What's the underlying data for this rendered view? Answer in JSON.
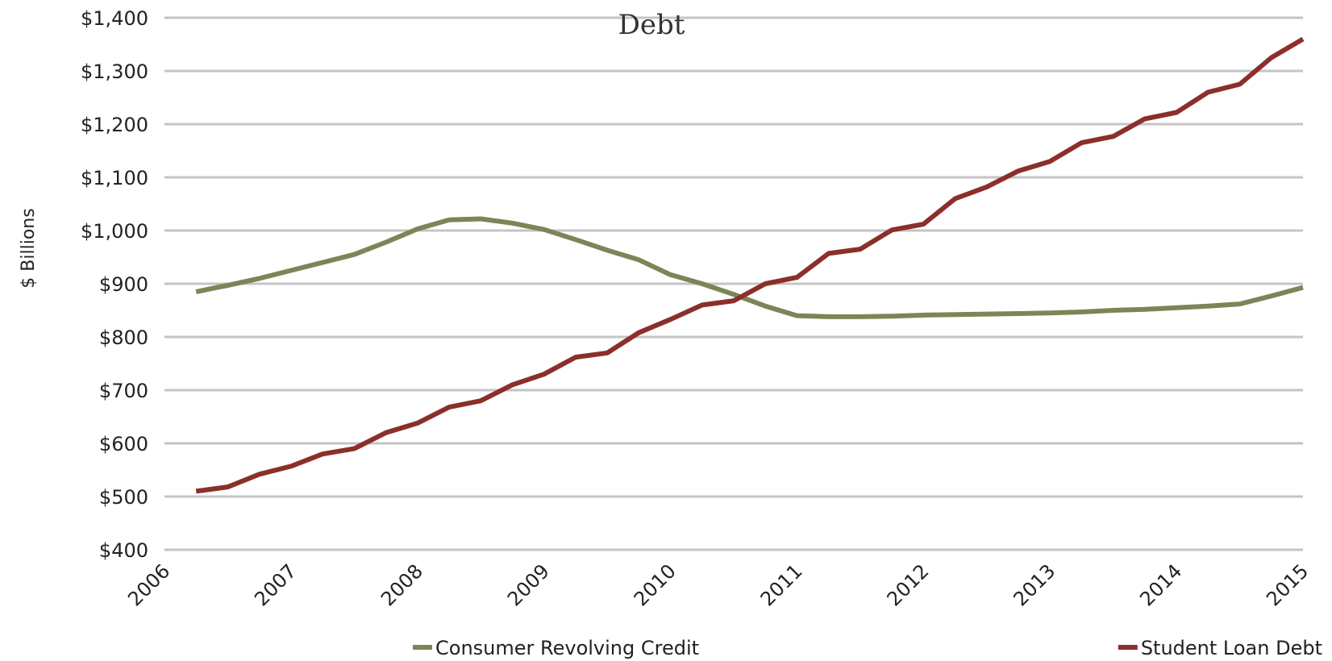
{
  "chart_data": {
    "type": "line",
    "title": "Debt",
    "ylabel": "$ Billions",
    "xlabel": "",
    "x_ticks": [
      "2006",
      "2007",
      "2008",
      "2009",
      "2010",
      "2011",
      "2012",
      "2013",
      "2014",
      "2015"
    ],
    "y_ticks": [
      "$400",
      "$500",
      "$600",
      "$700",
      "$800",
      "$900",
      "$1,000",
      "$1,100",
      "$1,200",
      "$1,300",
      "$1,400"
    ],
    "xlim": [
      2006,
      2015
    ],
    "ylim": [
      400,
      1400
    ],
    "grid": true,
    "legend": "bottom",
    "x": [
      2006.25,
      2006.5,
      2006.75,
      2007.0,
      2007.25,
      2007.5,
      2007.75,
      2008.0,
      2008.25,
      2008.5,
      2008.75,
      2009.0,
      2009.25,
      2009.5,
      2009.75,
      2010.0,
      2010.25,
      2010.5,
      2010.75,
      2011.0,
      2011.25,
      2011.5,
      2011.75,
      2012.0,
      2012.25,
      2012.5,
      2012.75,
      2013.0,
      2013.25,
      2013.5,
      2013.75,
      2014.0,
      2014.25,
      2014.5,
      2014.75,
      2015.0
    ],
    "series": [
      {
        "name": "Consumer Revolving Credit",
        "color": "#7a8656",
        "values": [
          885,
          897,
          910,
          925,
          940,
          955,
          978,
          1003,
          1020,
          1022,
          1014,
          1002,
          983,
          963,
          945,
          917,
          900,
          880,
          858,
          840,
          838,
          838,
          839,
          841,
          842,
          843,
          844,
          845,
          847,
          850,
          852,
          855,
          858,
          862,
          877,
          893
        ]
      },
      {
        "name": "Student Loan Debt",
        "color": "#8b2f2a",
        "values": [
          510,
          518,
          542,
          557,
          580,
          590,
          620,
          638,
          668,
          680,
          710,
          730,
          762,
          770,
          808,
          833,
          860,
          868,
          900,
          912,
          957,
          965,
          1001,
          1012,
          1060,
          1082,
          1112,
          1130,
          1165,
          1177,
          1210,
          1222,
          1260,
          1275,
          1325,
          1360
        ]
      }
    ]
  }
}
